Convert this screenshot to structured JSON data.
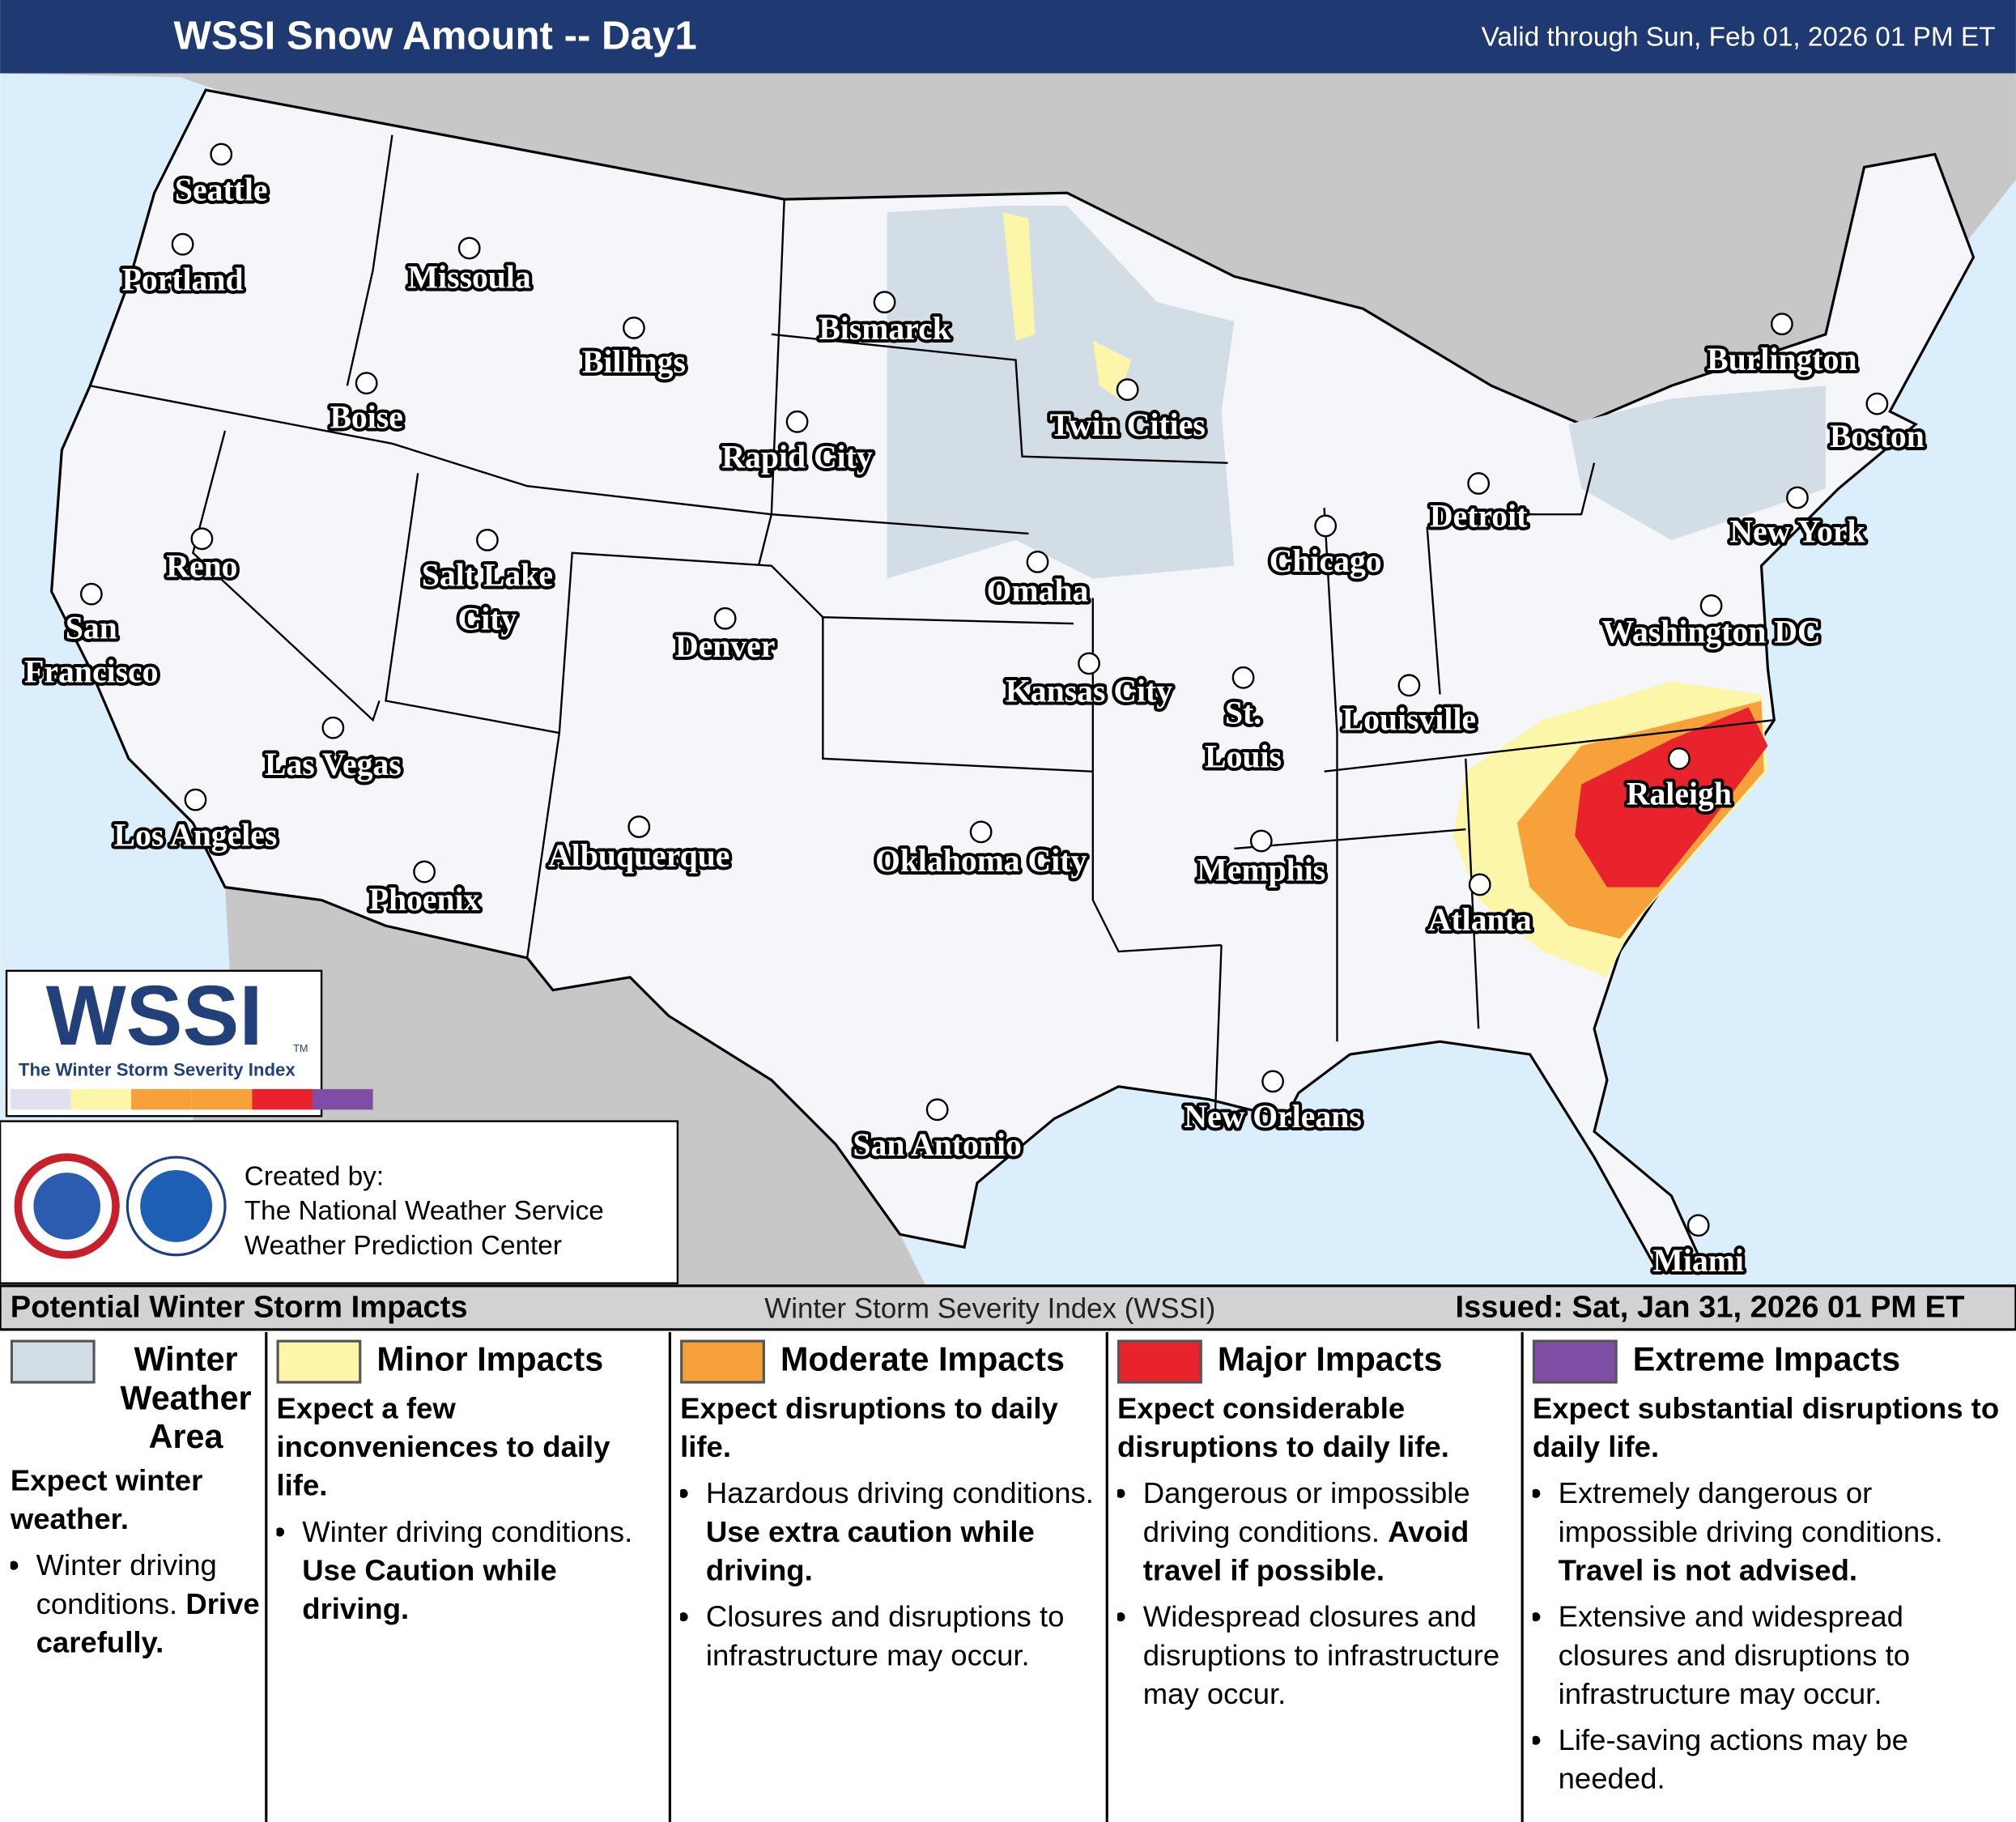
{
  "header": {
    "title": "WSSI Snow Amount -- Day1",
    "valid": "Valid through Sun, Feb 01, 2026 01 PM ET"
  },
  "cities": [
    {
      "lines": [
        "Seattle"
      ]
    },
    {
      "lines": [
        "Portland"
      ]
    },
    {
      "lines": [
        "Missoula"
      ]
    },
    {
      "lines": [
        "Billings"
      ]
    },
    {
      "lines": [
        "Bismarck"
      ]
    },
    {
      "lines": [
        "Boise"
      ]
    },
    {
      "lines": [
        "Rapid City"
      ]
    },
    {
      "lines": [
        "Twin Cities"
      ]
    },
    {
      "lines": [
        "Burlington"
      ]
    },
    {
      "lines": [
        "Boston"
      ]
    },
    {
      "lines": [
        "Reno"
      ]
    },
    {
      "lines": [
        "Salt Lake",
        "City"
      ]
    },
    {
      "lines": [
        "Detroit"
      ]
    },
    {
      "lines": [
        "Chicago"
      ]
    },
    {
      "lines": [
        "New York"
      ]
    },
    {
      "lines": [
        "Omaha"
      ]
    },
    {
      "lines": [
        "San",
        "Francisco"
      ]
    },
    {
      "lines": [
        "Denver"
      ]
    },
    {
      "lines": [
        "Washington DC"
      ]
    },
    {
      "lines": [
        "Kansas City"
      ]
    },
    {
      "lines": [
        "St.",
        "Louis"
      ]
    },
    {
      "lines": [
        "Louisville"
      ]
    },
    {
      "lines": [
        "Las Vegas"
      ]
    },
    {
      "lines": [
        "Raleigh"
      ]
    },
    {
      "lines": [
        "Los Angeles"
      ]
    },
    {
      "lines": [
        "Albuquerque"
      ]
    },
    {
      "lines": [
        "Oklahoma City"
      ]
    },
    {
      "lines": [
        "Memphis"
      ]
    },
    {
      "lines": [
        "Phoenix"
      ]
    },
    {
      "lines": [
        "Atlanta"
      ]
    },
    {
      "lines": [
        "New Orleans"
      ]
    },
    {
      "lines": [
        "San Antonio"
      ]
    },
    {
      "lines": [
        "Miami"
      ]
    }
  ],
  "logo": {
    "text": "WSSI",
    "tm": "TM",
    "subtitle": "The Winter Storm Severity Index"
  },
  "credits": {
    "lines": [
      "Created by:",
      "The National Weather Service",
      "Weather Prediction Center"
    ]
  },
  "legend": {
    "title": "Potential Winter Storm Impacts",
    "center": "Winter Storm Severity Index (WSSI)",
    "issued": "Issued: Sat, Jan 31, 2026 01 PM ET",
    "categories": [
      {
        "name": "Winter Weather Area",
        "color": "#d3dde6",
        "summary": "Expect winter weather.",
        "bullets": [
          {
            "text": "Winter driving conditions.",
            "bold": "Drive carefully."
          }
        ]
      },
      {
        "name": "Minor Impacts",
        "color": "#fbf6a8",
        "summary": "Expect a few inconveniences to daily life.",
        "bullets": [
          {
            "text": "Winter driving conditions.",
            "bold": "Use Caution while driving."
          }
        ]
      },
      {
        "name": "Moderate Impacts",
        "color": "#f6a13a",
        "summary": "Expect disruptions to daily life.",
        "bullets": [
          {
            "text": "Hazardous driving conditions.",
            "bold": "Use extra caution while driving."
          },
          {
            "text": "Closures and disruptions to infrastructure may occur."
          }
        ]
      },
      {
        "name": "Major Impacts",
        "color": "#e8232b",
        "summary": "Expect considerable disruptions to daily life.",
        "bullets": [
          {
            "text": "Dangerous or impossible driving conditions.",
            "bold": "Avoid travel if possible."
          },
          {
            "text": "Widespread closures and disruptions to infrastructure may occur."
          }
        ]
      },
      {
        "name": "Extreme Impacts",
        "color": "#7d4ea3",
        "summary": "Expect substantial disruptions to daily life.",
        "bullets": [
          {
            "text": "Extremely dangerous or impossible driving conditions.",
            "bold": "Travel is not advised."
          },
          {
            "text": "Extensive and widespread closures and disruptions to infrastructure may occur."
          },
          {
            "text": "Life-saving actions may be needed."
          }
        ]
      }
    ]
  }
}
